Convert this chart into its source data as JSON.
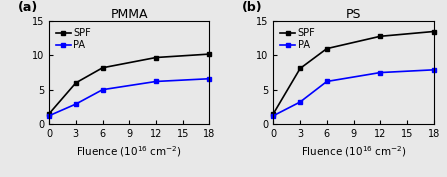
{
  "pmma": {
    "title": "PMMA",
    "x": [
      0,
      3,
      6,
      12,
      18
    ],
    "spf": [
      1.5,
      6.0,
      8.2,
      9.7,
      10.2
    ],
    "pa": [
      1.2,
      2.9,
      5.0,
      6.2,
      6.6
    ]
  },
  "ps": {
    "title": "PS",
    "x": [
      0,
      3,
      6,
      12,
      18
    ],
    "spf": [
      1.5,
      8.1,
      11.0,
      12.8,
      13.5
    ],
    "pa": [
      1.2,
      3.2,
      6.2,
      7.5,
      7.9
    ]
  },
  "xlim": [
    0,
    18
  ],
  "ylim": [
    0,
    15
  ],
  "xticks": [
    0,
    3,
    6,
    9,
    12,
    15,
    18
  ],
  "yticks": [
    0,
    5,
    10,
    15
  ],
  "xlabel": "Fluence (10$^{16}$ cm$^{-2}$)",
  "spf_color": "black",
  "pa_color": "blue",
  "marker": "s",
  "linewidth": 1.2,
  "markersize": 3.5,
  "legend_spf": "SPF",
  "legend_pa": "PA",
  "label_a": "(a)",
  "label_b": "(b)",
  "tick_fontsize": 7,
  "label_fontsize": 7.5,
  "title_fontsize": 9,
  "legend_fontsize": 7,
  "bg_color": "#e8e8e8"
}
